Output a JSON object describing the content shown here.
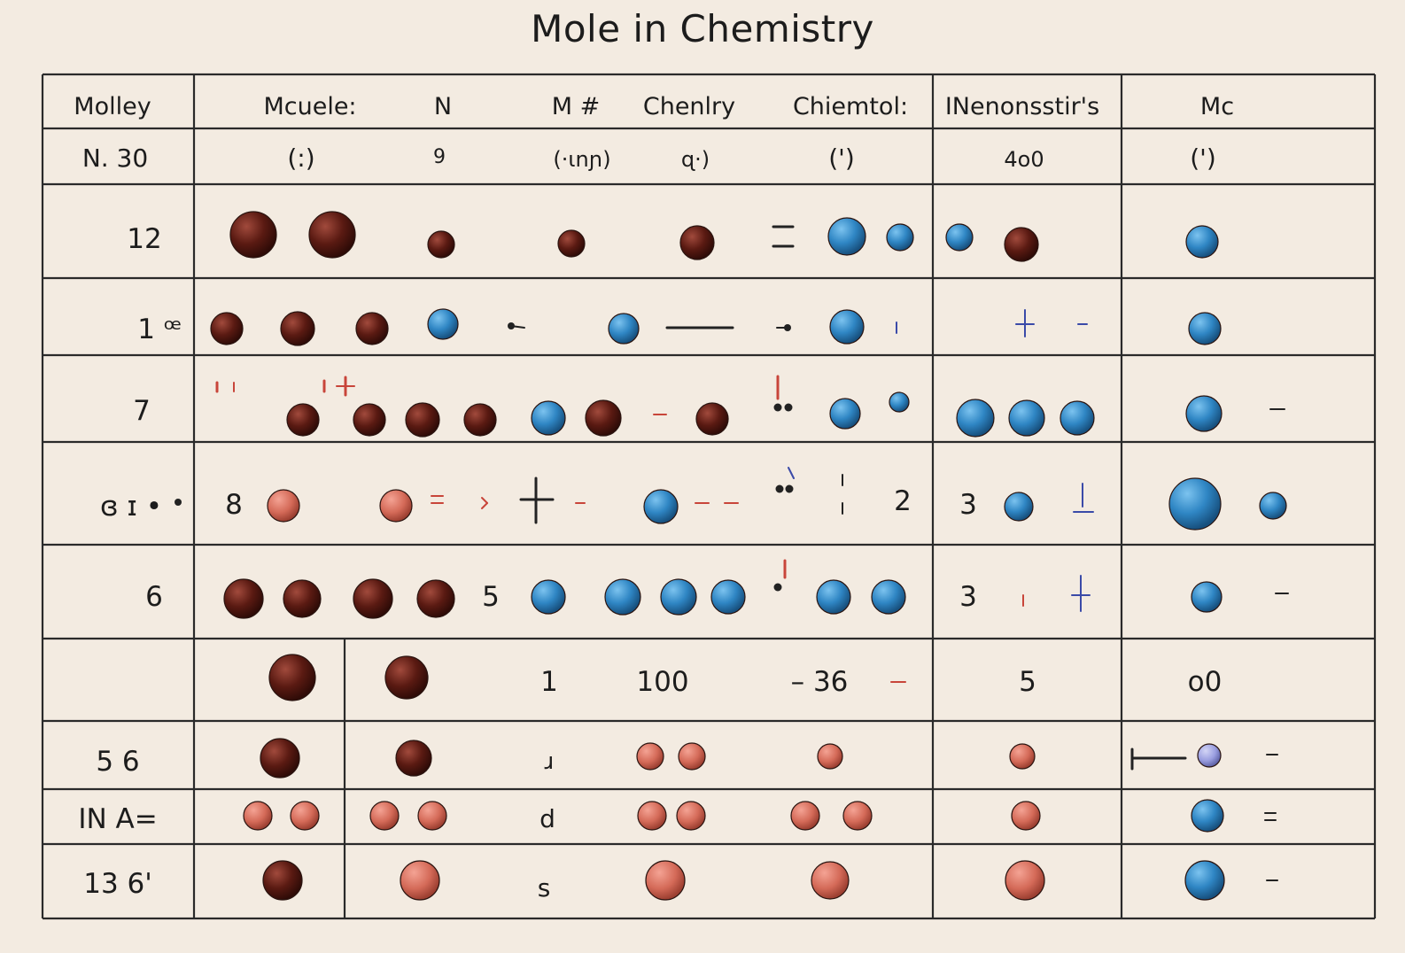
{
  "title": "Mole in Chemistry",
  "colors": {
    "background": "#f3ebe1",
    "grid": "#2a2a2a",
    "brown_ball": "#5a1a12",
    "blue_ball": "#2f86c4",
    "salmon_ball": "#d46a58",
    "lavender_ball": "#9a9ee0",
    "red_mark": "#c8453a",
    "navy_mark": "#3a4aa8"
  },
  "header": {
    "row1": [
      "Molley",
      "Mcuele:",
      "N",
      "M #",
      "Chenlry",
      "Chiemtol:",
      "INenonsstir's",
      "Mc"
    ],
    "row2": [
      "N.  30",
      "(:)",
      "9",
      "(·ɩnɲ)",
      "ɋ·)",
      "(')",
      "4o0",
      "(')"
    ]
  },
  "rows": [
    {
      "label": "12",
      "texts": []
    },
    {
      "label": "1 ꟹ",
      "texts": []
    },
    {
      "label": "7",
      "texts": []
    },
    {
      "label": "ɞ  ɪ •",
      "texts": [
        "8",
        "2",
        "3"
      ]
    },
    {
      "label": "6",
      "texts": [
        "5",
        "3"
      ]
    },
    {
      "label": "",
      "texts": [
        "1",
        "100",
        "–  36",
        "5",
        "o0"
      ]
    },
    {
      "label": "5  6",
      "texts": [
        "ɹ"
      ]
    },
    {
      "label": "IN  A=",
      "texts": [
        "d"
      ]
    },
    {
      "label": "13  6'",
      "texts": [
        "s"
      ]
    }
  ]
}
